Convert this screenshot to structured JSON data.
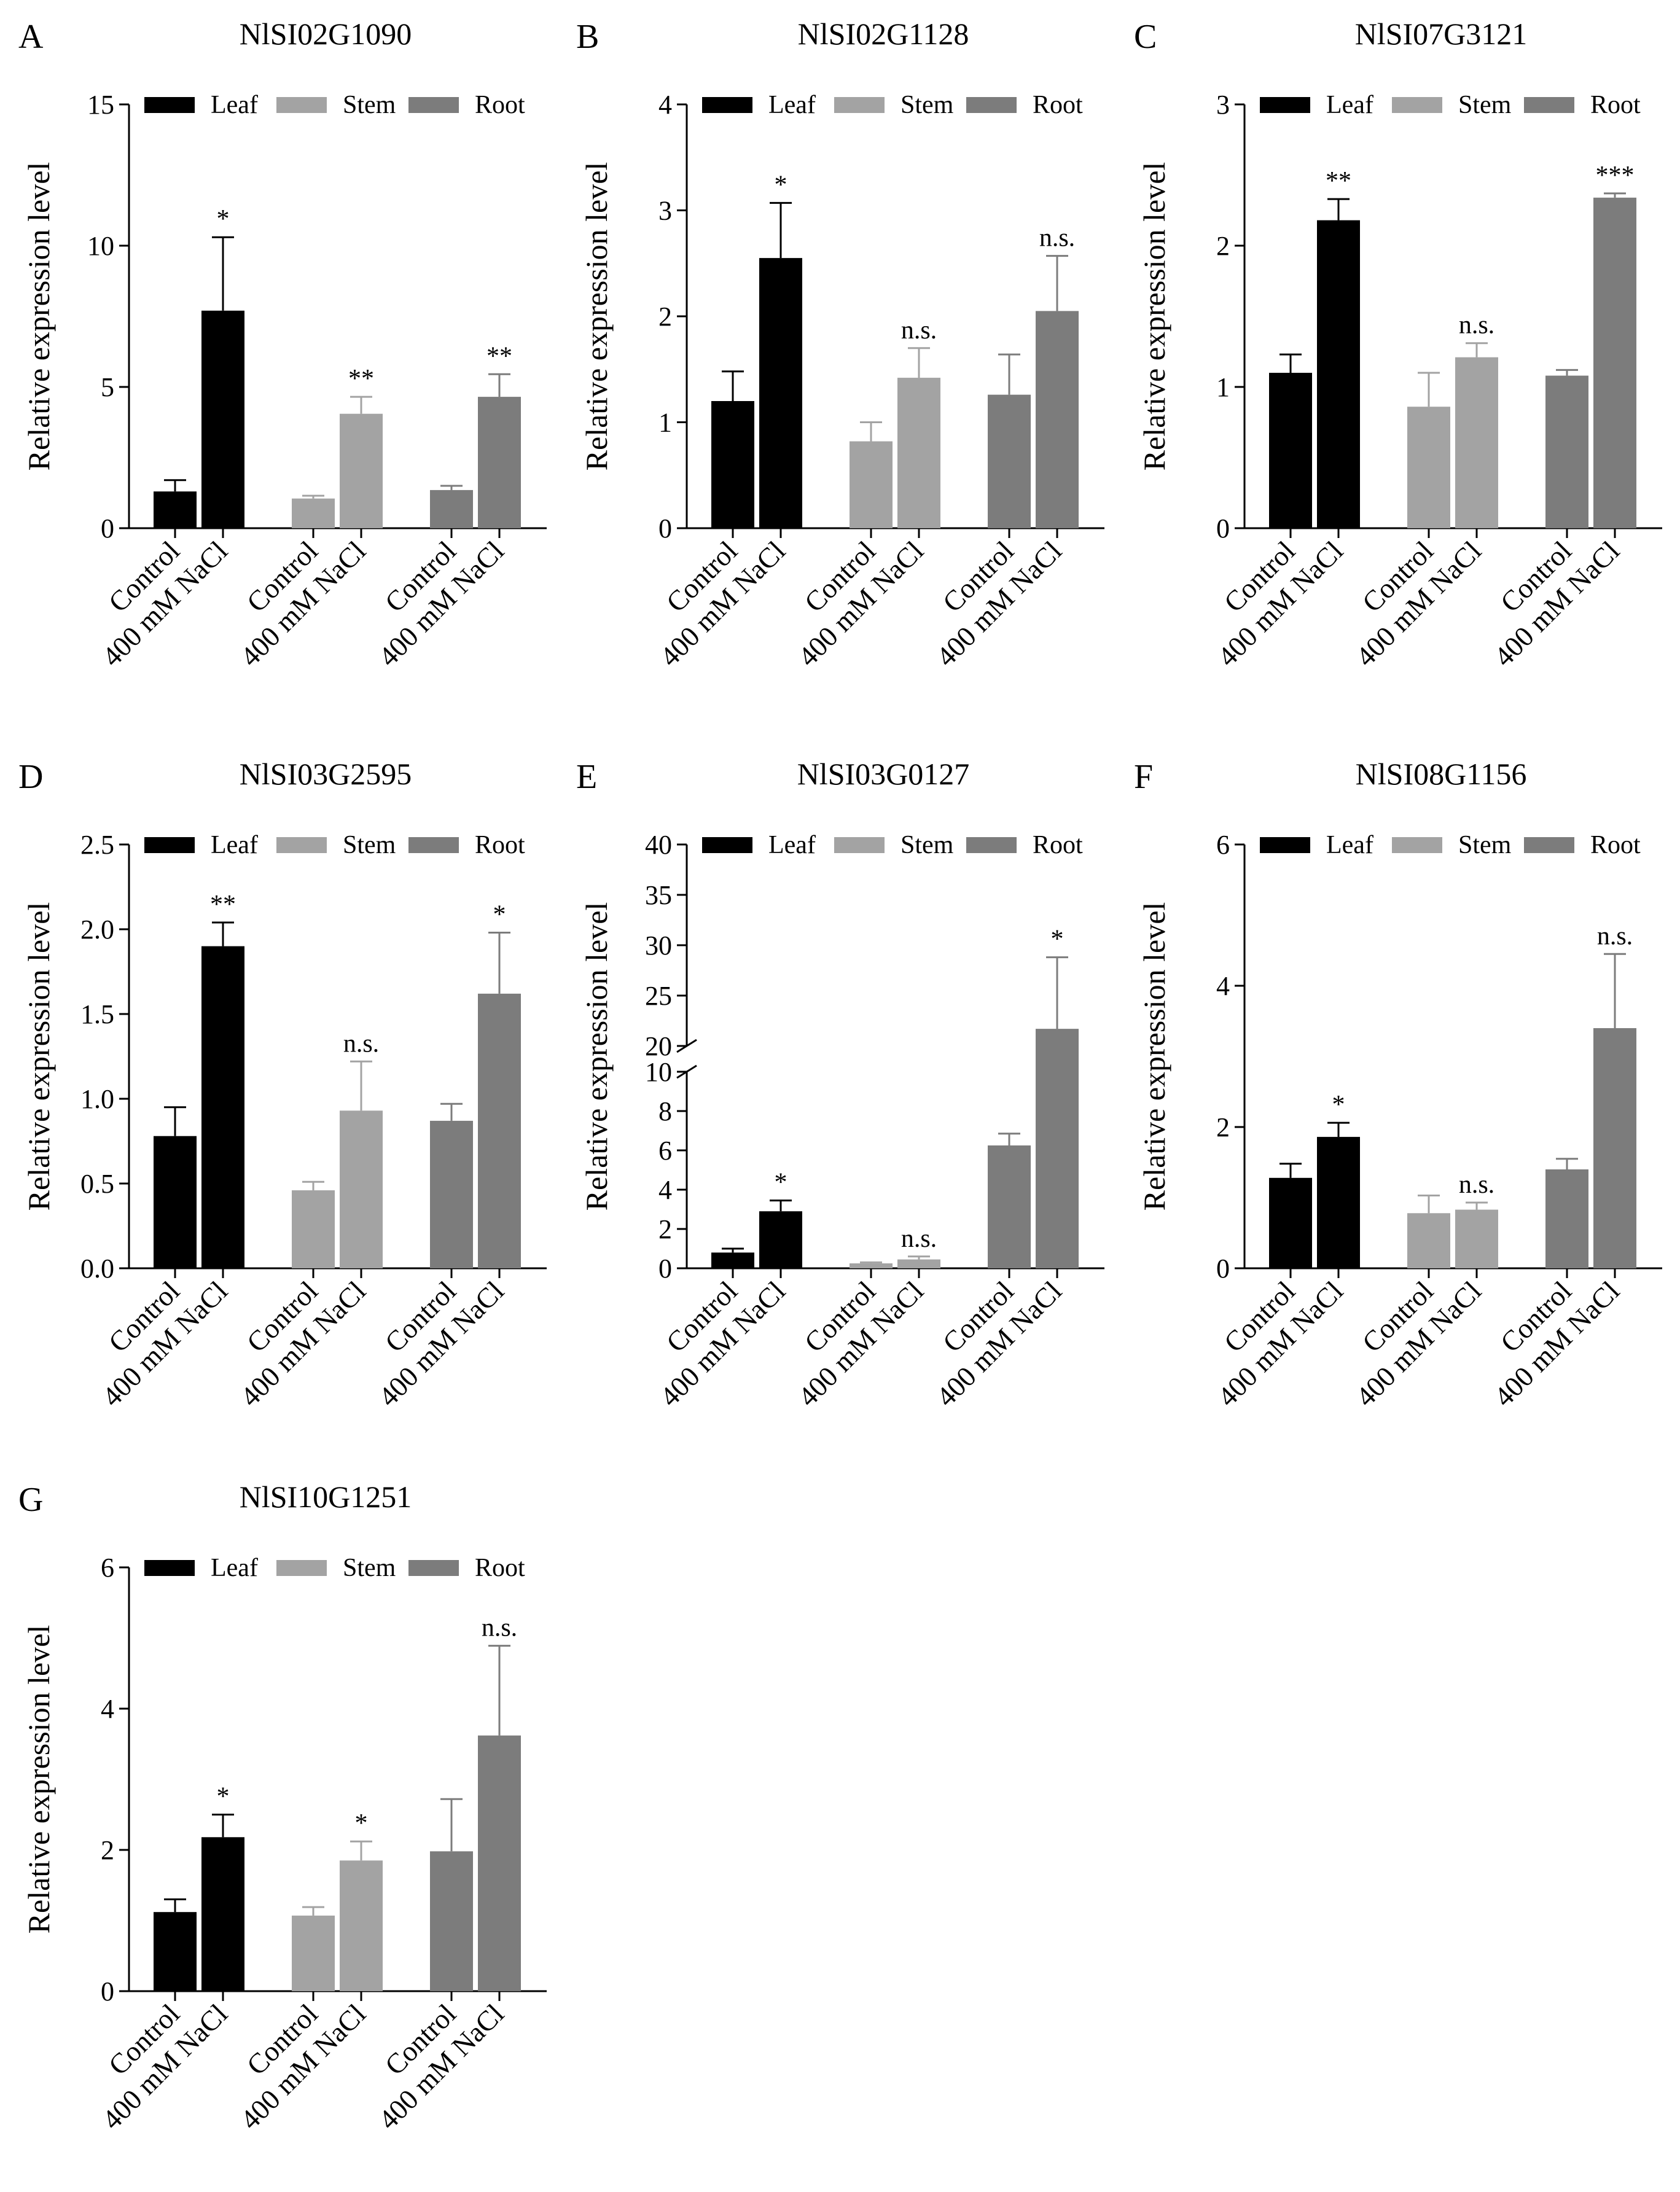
{
  "legend": [
    "Leaf",
    "Stem",
    "Root"
  ],
  "colors": {
    "Leaf": "#000000",
    "Stem": "#a3a3a3",
    "Root": "#7c7c7c",
    "axis": "#000000",
    "error": "#000000"
  },
  "ylabel": "Relative expression level",
  "conditions": [
    "Control",
    "400 mM NaCl"
  ],
  "chart_data": [
    {
      "panel": "A",
      "title": "NlSI02G1090",
      "type": "bar",
      "ylim": [
        0,
        15
      ],
      "yticks": [
        "0",
        "5",
        "10",
        "15"
      ],
      "series": [
        {
          "name": "Leaf",
          "values": [
            1.3,
            7.7
          ],
          "errors": [
            0.4,
            2.6
          ],
          "sig": "*"
        },
        {
          "name": "Stem",
          "values": [
            1.05,
            4.05
          ],
          "errors": [
            0.1,
            0.6
          ],
          "sig": "**"
        },
        {
          "name": "Root",
          "values": [
            1.35,
            4.65
          ],
          "errors": [
            0.15,
            0.8
          ],
          "sig": "**"
        }
      ]
    },
    {
      "panel": "B",
      "title": "NlSI02G1128",
      "type": "bar",
      "ylim": [
        0,
        4
      ],
      "yticks": [
        "0",
        "1",
        "2",
        "3",
        "4"
      ],
      "series": [
        {
          "name": "Leaf",
          "values": [
            1.2,
            2.55
          ],
          "errors": [
            0.28,
            0.52
          ],
          "sig": "*"
        },
        {
          "name": "Stem",
          "values": [
            0.82,
            1.42
          ],
          "errors": [
            0.18,
            0.28
          ],
          "sig": "n.s."
        },
        {
          "name": "Root",
          "values": [
            1.26,
            2.05
          ],
          "errors": [
            0.38,
            0.52
          ],
          "sig": "n.s."
        }
      ]
    },
    {
      "panel": "C",
      "title": "NlSI07G3121",
      "type": "bar",
      "ylim": [
        0,
        3
      ],
      "yticks": [
        "0",
        "1",
        "2",
        "3"
      ],
      "series": [
        {
          "name": "Leaf",
          "values": [
            1.1,
            2.18
          ],
          "errors": [
            0.13,
            0.15
          ],
          "sig": "**"
        },
        {
          "name": "Stem",
          "values": [
            0.86,
            1.21
          ],
          "errors": [
            0.24,
            0.1
          ],
          "sig": "n.s."
        },
        {
          "name": "Root",
          "values": [
            1.08,
            2.34
          ],
          "errors": [
            0.04,
            0.03
          ],
          "sig": "***"
        }
      ]
    },
    {
      "panel": "D",
      "title": "NlSI03G2595",
      "type": "bar",
      "ylim": [
        0,
        2.5
      ],
      "yticks": [
        "0.0",
        "0.5",
        "1.0",
        "1.5",
        "2.0",
        "2.5"
      ],
      "series": [
        {
          "name": "Leaf",
          "values": [
            0.78,
            1.9
          ],
          "errors": [
            0.17,
            0.14
          ],
          "sig": "**"
        },
        {
          "name": "Stem",
          "values": [
            0.46,
            0.93
          ],
          "errors": [
            0.05,
            0.29
          ],
          "sig": "n.s."
        },
        {
          "name": "Root",
          "values": [
            0.87,
            1.62
          ],
          "errors": [
            0.1,
            0.36
          ],
          "sig": "*"
        }
      ]
    },
    {
      "panel": "E",
      "title": "NlSI03G0127",
      "type": "bar",
      "ylim_lower": [
        0,
        10
      ],
      "ylim_upper": [
        20,
        40
      ],
      "yticks_lower": [
        "0",
        "2",
        "4",
        "6",
        "8",
        "10"
      ],
      "yticks_upper": [
        "20",
        "25",
        "30",
        "35",
        "40"
      ],
      "series": [
        {
          "name": "Leaf",
          "values": [
            0.8,
            2.9
          ],
          "errors": [
            0.2,
            0.55
          ],
          "sig": "*"
        },
        {
          "name": "Stem",
          "values": [
            0.25,
            0.45
          ],
          "errors": [
            0.05,
            0.15
          ],
          "sig": "n.s."
        },
        {
          "name": "Root",
          "values": [
            6.25,
            21.7
          ],
          "errors": [
            0.6,
            7.1
          ],
          "sig": "*"
        }
      ]
    },
    {
      "panel": "F",
      "title": "NlSI08G1156",
      "type": "bar",
      "ylim": [
        0,
        6
      ],
      "yticks": [
        "0",
        "2",
        "4",
        "6"
      ],
      "series": [
        {
          "name": "Leaf",
          "values": [
            1.28,
            1.86
          ],
          "errors": [
            0.2,
            0.2
          ],
          "sig": "*"
        },
        {
          "name": "Stem",
          "values": [
            0.78,
            0.83
          ],
          "errors": [
            0.25,
            0.1
          ],
          "sig": "n.s."
        },
        {
          "name": "Root",
          "values": [
            1.4,
            3.4
          ],
          "errors": [
            0.15,
            1.05
          ],
          "sig": "n.s."
        }
      ]
    },
    {
      "panel": "G",
      "title": "NlSI10G1251",
      "type": "bar",
      "ylim": [
        0,
        6
      ],
      "yticks": [
        "0",
        "2",
        "4",
        "6"
      ],
      "series": [
        {
          "name": "Leaf",
          "values": [
            1.12,
            2.18
          ],
          "errors": [
            0.18,
            0.32
          ],
          "sig": "*"
        },
        {
          "name": "Stem",
          "values": [
            1.07,
            1.85
          ],
          "errors": [
            0.12,
            0.27
          ],
          "sig": "*"
        },
        {
          "name": "Root",
          "values": [
            1.98,
            3.62
          ],
          "errors": [
            0.74,
            1.27
          ],
          "sig": "n.s."
        }
      ]
    }
  ]
}
